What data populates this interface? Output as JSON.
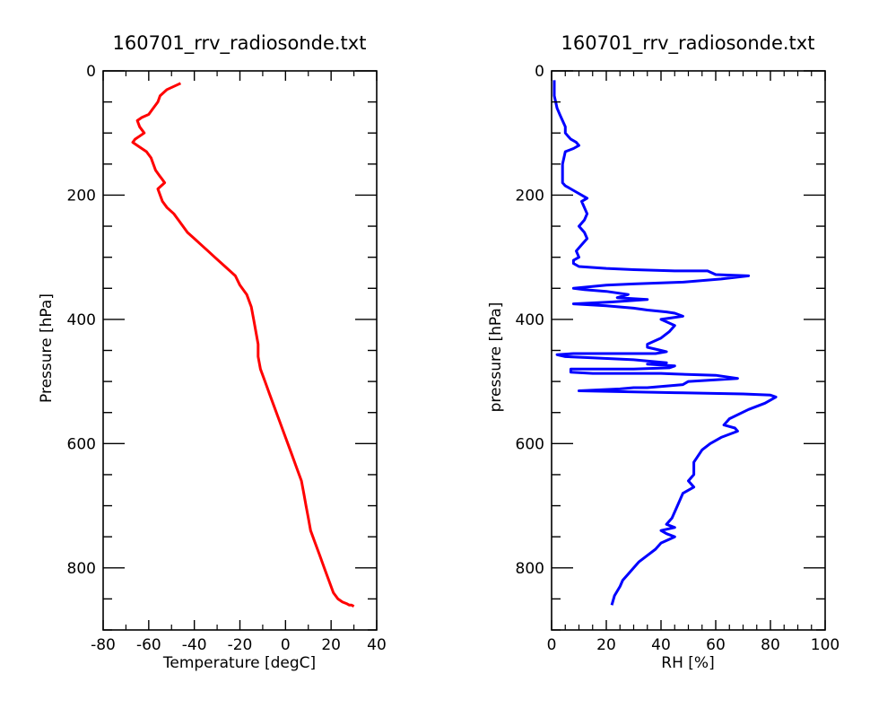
{
  "chart_data": [
    {
      "type": "line",
      "title": "160701_rrv_radiosonde.txt",
      "xlabel": "Temperature [degC]",
      "ylabel": "Pressure [hPa]",
      "xlim": [
        -80,
        40
      ],
      "ylim": [
        900,
        0
      ],
      "y_inverted": true,
      "grid": false,
      "legend": "none",
      "x_ticks": [
        -80,
        -60,
        -40,
        -20,
        0,
        20,
        40
      ],
      "x_tick_labels": [
        "-80",
        "-60",
        "-40",
        "-20",
        "0",
        "20",
        "40"
      ],
      "y_ticks": [
        0,
        200,
        400,
        600,
        800
      ],
      "y_tick_labels": [
        "0",
        "200",
        "400",
        "600",
        "800"
      ],
      "color": "#ff0000",
      "series": [
        {
          "x": [
            -46,
            -49,
            -52,
            -55,
            -56,
            -58,
            -60,
            -63,
            -65,
            -64,
            -62,
            -64,
            -66,
            -67,
            -65,
            -61,
            -59,
            -58,
            -57,
            -55,
            -54,
            -53,
            -56,
            -55,
            -54,
            -52,
            -49,
            -47,
            -45,
            -43,
            -40,
            -37,
            -34,
            -31,
            -28,
            -25,
            -22,
            -20,
            -17,
            -15,
            -14,
            -13,
            -12,
            -12,
            -11,
            -9,
            -7,
            -5,
            -3,
            -1,
            1,
            3,
            5,
            7,
            8,
            9,
            10,
            11,
            13,
            15,
            17,
            19,
            21,
            23,
            25,
            27,
            28,
            29,
            30
          ],
          "y": [
            20,
            25,
            30,
            40,
            50,
            60,
            70,
            75,
            80,
            90,
            100,
            105,
            110,
            115,
            120,
            130,
            140,
            150,
            160,
            170,
            175,
            180,
            190,
            200,
            210,
            220,
            230,
            240,
            250,
            260,
            270,
            280,
            290,
            300,
            310,
            320,
            330,
            345,
            360,
            380,
            400,
            420,
            440,
            460,
            480,
            500,
            520,
            540,
            560,
            580,
            600,
            620,
            640,
            660,
            680,
            700,
            720,
            740,
            760,
            780,
            800,
            820,
            840,
            850,
            855,
            858,
            860,
            860,
            862
          ]
        }
      ]
    },
    {
      "type": "line",
      "title": "160701_rrv_radiosonde.txt",
      "xlabel": "RH [%]",
      "ylabel": "pressure [hPa]",
      "xlim": [
        0,
        100
      ],
      "ylim": [
        900,
        0
      ],
      "y_inverted": true,
      "grid": false,
      "legend": "none",
      "x_ticks": [
        0,
        20,
        40,
        60,
        80,
        100
      ],
      "x_tick_labels": [
        "0",
        "20",
        "40",
        "60",
        "80",
        "100"
      ],
      "y_ticks": [
        0,
        200,
        400,
        600,
        800
      ],
      "y_tick_labels": [
        "0",
        "200",
        "400",
        "600",
        "800"
      ],
      "color": "#0000ff",
      "series": [
        {
          "x": [
            1,
            1,
            2,
            3,
            4,
            5,
            5,
            6,
            7,
            9,
            10,
            8,
            5,
            4,
            4,
            4,
            5,
            7,
            9,
            11,
            13,
            11,
            13,
            12,
            10,
            12,
            13,
            11,
            9,
            10,
            8,
            8,
            10,
            20,
            30,
            45,
            57,
            60,
            72,
            62,
            48,
            30,
            20,
            8,
            12,
            20,
            28,
            24,
            35,
            22,
            8,
            20,
            30,
            35,
            42,
            45,
            48,
            40,
            45,
            43,
            40,
            35,
            35,
            40,
            42,
            38,
            30,
            15,
            8,
            2,
            5,
            15,
            30,
            42,
            35,
            45,
            43,
            30,
            7,
            7,
            15,
            30,
            40,
            45,
            60,
            68,
            50,
            48,
            35,
            30,
            25,
            10,
            45,
            70,
            80,
            82,
            78,
            72,
            65,
            63,
            67,
            68,
            62,
            58,
            55,
            52,
            52,
            50,
            52,
            48,
            46,
            44,
            42,
            45,
            40,
            42,
            45,
            40,
            38,
            35,
            32,
            30,
            28,
            26,
            25,
            23,
            22
          ],
          "y": [
            15,
            40,
            60,
            70,
            80,
            90,
            100,
            105,
            110,
            115,
            120,
            125,
            130,
            150,
            170,
            180,
            185,
            190,
            195,
            200,
            205,
            210,
            230,
            240,
            250,
            260,
            270,
            280,
            290,
            300,
            305,
            310,
            315,
            318,
            320,
            322,
            322,
            328,
            330,
            335,
            340,
            343,
            345,
            350,
            352,
            355,
            360,
            365,
            368,
            372,
            375,
            378,
            382,
            385,
            388,
            390,
            395,
            400,
            410,
            420,
            430,
            440,
            445,
            450,
            452,
            455,
            455,
            455,
            455,
            457,
            460,
            462,
            465,
            470,
            472,
            475,
            478,
            480,
            480,
            485,
            487,
            487,
            487,
            488,
            490,
            495,
            500,
            505,
            510,
            510,
            512,
            515,
            518,
            520,
            522,
            525,
            535,
            545,
            560,
            570,
            575,
            580,
            590,
            600,
            610,
            630,
            650,
            660,
            670,
            680,
            700,
            720,
            730,
            735,
            740,
            745,
            750,
            760,
            770,
            780,
            790,
            800,
            810,
            820,
            830,
            845,
            860
          ]
        }
      ]
    }
  ]
}
